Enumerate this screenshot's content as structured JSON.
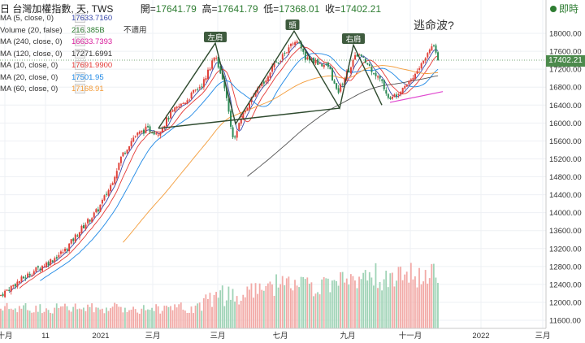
{
  "header": {
    "title": "日 台灣加權指數, 天, TWS",
    "open_label": "開=",
    "open": "17641.79",
    "high_label": "高=",
    "high": "17641.79",
    "low_label": "低=",
    "low": "17368.01",
    "close_label": "收=",
    "close": "17402.21"
  },
  "live_label": "即時",
  "studies": [
    {
      "name": "MA (5, close, 0)",
      "value": "17633.7160",
      "color": "#3949ab",
      "extra": ""
    },
    {
      "name": "Volume (20, false)",
      "value": "216.385B",
      "color": "#2e7d32",
      "extra": "不適用"
    },
    {
      "name": "MA (240, close, 0)",
      "value": "16633.7393",
      "color": "#d81b9a",
      "extra": ""
    },
    {
      "name": "MA (120, close, 0)",
      "value": "17271.6991",
      "color": "#333333",
      "extra": ""
    },
    {
      "name": "MA (10, close, 0)",
      "value": "17691.9900",
      "color": "#e53935",
      "extra": ""
    },
    {
      "name": "MA (20, close, 0)",
      "value": "17501.95",
      "color": "#1e88e5",
      "extra": ""
    },
    {
      "name": "MA (60, close, 0)",
      "value": "17168.91",
      "color": "#f39c3a",
      "extra": ""
    }
  ],
  "price_tag": "17402.21",
  "annotations": {
    "left_shoulder": "左肩",
    "head": "頭",
    "right_shoulder": "右肩",
    "question": "逃命波?"
  },
  "chart_data": {
    "type": "candlestick",
    "y_ticks": [
      11600,
      12000,
      12400,
      12800,
      13200,
      13600,
      14000,
      14400,
      14800,
      15200,
      15600,
      16000,
      16400,
      16800,
      17200,
      17600,
      18000
    ],
    "y_tick_labels": [
      "11600.00",
      "12000.00",
      "12400.00",
      "12800.00",
      "13200.00",
      "13600.00",
      "14000.00",
      "14400.00",
      "14800.00",
      "15200.00",
      "15600.00",
      "16000.00",
      "16400.00",
      "16800.00",
      "17200.00",
      "17600.00",
      "18000.00"
    ],
    "ylim": [
      11450,
      18300
    ],
    "x_labels": [
      "十月",
      "11",
      "2021",
      "三月",
      "三月",
      "七月",
      "九月",
      "十一月",
      "2022",
      "三月"
    ],
    "close_path": [
      [
        0,
        12150
      ],
      [
        20,
        12430
      ],
      [
        40,
        12680
      ],
      [
        60,
        12900
      ],
      [
        80,
        13160
      ],
      [
        100,
        13640
      ],
      [
        120,
        14050
      ],
      [
        135,
        14550
      ],
      [
        150,
        15280
      ],
      [
        165,
        15700
      ],
      [
        180,
        15860
      ],
      [
        195,
        15790
      ],
      [
        210,
        16200
      ],
      [
        230,
        16520
      ],
      [
        250,
        16900
      ],
      [
        265,
        17560
      ],
      [
        280,
        16500
      ],
      [
        287,
        15580
      ],
      [
        300,
        16250
      ],
      [
        320,
        16800
      ],
      [
        340,
        17350
      ],
      [
        355,
        17650
      ],
      [
        365,
        17850
      ],
      [
        375,
        17450
      ],
      [
        390,
        17350
      ],
      [
        405,
        17250
      ],
      [
        415,
        16650
      ],
      [
        425,
        17050
      ],
      [
        440,
        17550
      ],
      [
        455,
        17250
      ],
      [
        470,
        16900
      ],
      [
        480,
        16500
      ],
      [
        495,
        16800
      ],
      [
        510,
        17050
      ],
      [
        525,
        17500
      ],
      [
        533,
        17800
      ],
      [
        540,
        17402
      ]
    ],
    "price_range": {
      "first_close": 12150,
      "last_close": 17402.21
    },
    "volume_range_note": "daily volume bars",
    "neckline": [
      [
        195,
        15880
      ],
      [
        418,
        16330
      ]
    ],
    "head_shoulders": [
      [
        195,
        15880
      ],
      [
        265,
        17780
      ],
      [
        290,
        15980
      ],
      [
        362,
        18050
      ],
      [
        418,
        16330
      ],
      [
        435,
        17740
      ],
      [
        470,
        16400
      ]
    ],
    "support_line": [
      [
        480,
        16460
      ],
      [
        545,
        16700
      ]
    ],
    "grid": true
  }
}
